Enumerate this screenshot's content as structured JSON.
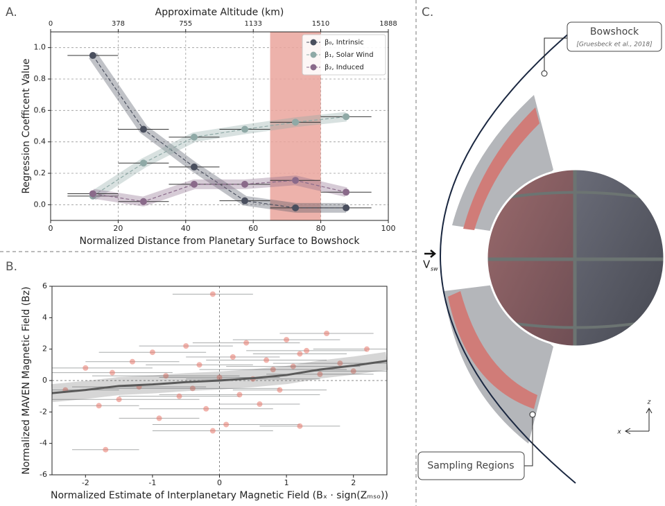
{
  "chart_data": [
    {
      "type": "line",
      "panel_label": "A.",
      "x_label": "Normalized Distance from Planetary Surface to Bowshock",
      "y_label": "Regression Coefficent Value",
      "x2_label": "Approximate Altitude (km)",
      "x": [
        12.5,
        27.5,
        42.5,
        57.5,
        72.5,
        87.5
      ],
      "xerr": [
        7.5,
        7.5,
        7.5,
        7.5,
        7.5,
        7.5
      ],
      "series": [
        {
          "name": "β₀, Intrinsic",
          "color": "#4a4f5e",
          "values": [
            0.95,
            0.48,
            0.24,
            0.025,
            -0.02,
            -0.02
          ]
        },
        {
          "name": "β₁, Solar Wind",
          "color": "#8fa9a6",
          "values": [
            0.055,
            0.265,
            0.43,
            0.48,
            0.525,
            0.56
          ]
        },
        {
          "name": "β₂, Induced",
          "color": "#8a6a8a",
          "values": [
            0.07,
            0.02,
            0.13,
            0.13,
            0.155,
            0.08
          ]
        }
      ],
      "xlim": [
        0,
        100
      ],
      "xticks": [
        0,
        20,
        40,
        60,
        80,
        100
      ],
      "ylim": [
        -0.1,
        1.1
      ],
      "yticks": [
        {
          "value": 0,
          "label": "0.0"
        },
        0.2,
        0.4,
        0.6,
        0.8,
        {
          "value": 1,
          "label": "1.0"
        }
      ],
      "x2lim": [
        0,
        1888
      ],
      "x2ticks": [
        0,
        378,
        755,
        1133,
        1510,
        1888
      ],
      "span": [
        65,
        80
      ],
      "span_color": "#eaa59c",
      "grid": true,
      "legend": "upper right"
    },
    {
      "type": "scatter",
      "panel_label": "B.",
      "x_label": "Normalized Estimate of Interplanetary Magnetic Field (Bₓ · sign(Zₘₛₒ))",
      "y_label": "Normalized MAVEN Magnetic Field (Bz)",
      "x": [
        -2.3,
        -2.0,
        -1.8,
        -1.6,
        -1.5,
        -1.3,
        -1.2,
        -1.0,
        -0.9,
        -0.8,
        -0.6,
        -0.5,
        -0.4,
        -0.3,
        -0.2,
        -0.1,
        0.0,
        0.1,
        0.2,
        0.3,
        0.4,
        0.5,
        0.6,
        0.7,
        0.8,
        0.9,
        1.0,
        1.1,
        1.2,
        1.3,
        1.5,
        1.6,
        1.8,
        2.0,
        2.2,
        -0.1,
        1.2,
        -1.7
      ],
      "y": [
        -0.6,
        0.8,
        -1.6,
        0.5,
        -1.2,
        1.2,
        -0.4,
        1.8,
        -2.4,
        0.3,
        -1.0,
        2.2,
        -0.5,
        1.0,
        -1.8,
        5.5,
        0.2,
        -2.8,
        1.5,
        -0.9,
        2.4,
        0.1,
        -1.5,
        1.3,
        0.7,
        -0.6,
        2.6,
        0.9,
        -2.9,
        1.9,
        0.4,
        3.0,
        1.1,
        0.6,
        2.0,
        -3.2,
        1.7,
        -4.4
      ],
      "xerr": [
        0.8,
        1.0,
        0.6,
        0.9,
        1.2,
        0.7,
        1.0,
        0.8,
        0.6,
        1.1,
        0.9,
        0.7,
        1.3,
        0.8,
        1.0,
        0.6,
        0.9,
        1.1,
        0.7,
        1.2,
        0.8,
        1.0,
        0.6,
        0.9,
        1.1,
        0.7,
        0.8,
        1.0,
        0.6,
        0.9,
        0.8,
        0.7,
        1.0,
        0.6,
        0.8,
        0.9,
        0.7,
        0.5
      ],
      "color": "#e8776a",
      "trend": {
        "x": [
          -2.5,
          -2,
          -1.5,
          -1,
          -0.5,
          0,
          0.5,
          1,
          1.5,
          2,
          2.5
        ],
        "y": [
          -0.8,
          -0.6,
          -0.35,
          -0.25,
          -0.1,
          0.0,
          0.15,
          0.35,
          0.7,
          0.95,
          1.25
        ],
        "color": "#5a5a5a"
      },
      "xlim": [
        -2.5,
        2.5
      ],
      "xticks": [
        -2,
        -1,
        0,
        1,
        2
      ],
      "ylim": [
        -6,
        6
      ],
      "yticks": [
        -6,
        -4,
        -2,
        0,
        2,
        4,
        6
      ]
    }
  ],
  "diagram": {
    "panel_label": "C.",
    "bowshock": "Bowshock",
    "citation": "[Gruesbeck et al., 2018]",
    "v_label": "V",
    "v_sub": "sw",
    "sampling": "Sampling Regions",
    "axis_z": "z",
    "axis_x": "x"
  }
}
